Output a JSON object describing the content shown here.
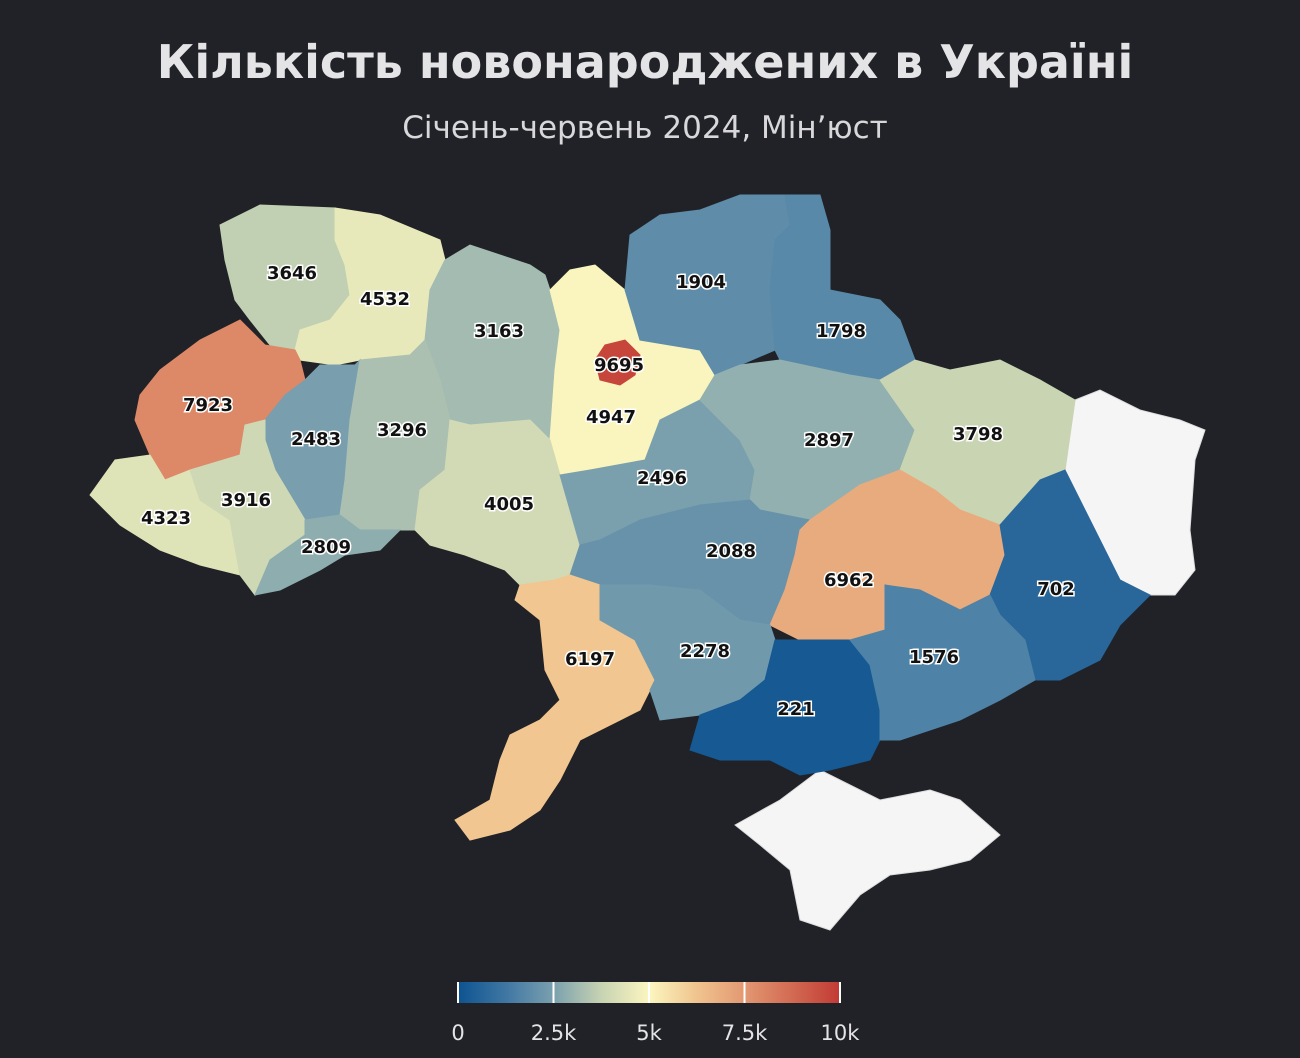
{
  "chart_data": {
    "type": "choropleth",
    "title": "Кількість новонароджених в Україні",
    "subtitle": "Січень-червень 2024, Мін’юст",
    "values": [
      3646,
      4532,
      3163,
      9695,
      4947,
      1904,
      1798,
      7923,
      2483,
      3296,
      4323,
      3916,
      2809,
      4005,
      2496,
      2897,
      3798,
      2088,
      6962,
      702,
      6197,
      2278,
      221,
      1576
    ],
    "colors": [
      "#0d5390",
      "#3f77a3",
      "#7aa0ae",
      "#c7d3b2",
      "#fcf6bf",
      "#f0c48e",
      "#e29872",
      "#d26a52",
      "#c23a34"
    ],
    "clim": [
      0,
      10000
    ],
    "cticks": [
      0,
      {
        "value": 2500,
        "label": "2.5k"
      },
      {
        "value": 5000,
        "label": "5k"
      },
      {
        "value": 7500,
        "label": "7.5k"
      },
      {
        "value": 10000,
        "label": "10k"
      }
    ]
  }
}
